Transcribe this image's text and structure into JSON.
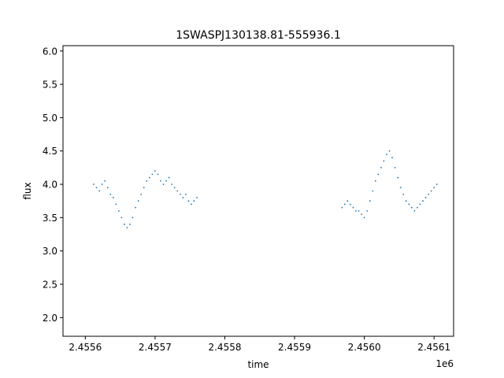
{
  "chart_data": {
    "type": "scatter",
    "title": "1SWASPJ130138.81-555936.1",
    "xlabel": "time",
    "ylabel": "flux",
    "x_offset_label": "1e6",
    "x_scale": 1000000,
    "xlim": [
      2455568,
      2456128
    ],
    "ylim": [
      1.72,
      6.08
    ],
    "x_ticks": [
      2455600,
      2455700,
      2455800,
      2455900,
      2456000,
      2456100
    ],
    "x_tick_labels": [
      "2.4556",
      "2.4557",
      "2.4558",
      "2.4559",
      "2.4560",
      "2.4561"
    ],
    "y_ticks": [
      2.0,
      2.5,
      3.0,
      3.5,
      4.0,
      4.5,
      5.0,
      5.5,
      6.0
    ],
    "y_tick_labels": [
      "2.0",
      "2.5",
      "3.0",
      "3.5",
      "4.0",
      "4.5",
      "5.0",
      "5.5",
      "6.0"
    ],
    "grid": false,
    "marker_color": "#1f77b4",
    "series": [
      {
        "x": [
          2455612,
          2455616,
          2455620,
          2455624,
          2455628,
          2455632,
          2455636,
          2455640,
          2455644,
          2455648,
          2455652,
          2455656,
          2455660,
          2455664,
          2455668,
          2455672,
          2455676,
          2455680,
          2455684,
          2455688,
          2455692,
          2455696,
          2455700,
          2455704,
          2455708,
          2455712,
          2455716,
          2455720,
          2455724,
          2455728,
          2455732,
          2455736,
          2455740,
          2455744,
          2455748,
          2455752,
          2455756,
          2455760,
          2455968,
          2455972,
          2455976,
          2455980,
          2455984,
          2455988,
          2455992,
          2455996,
          2456000,
          2456004,
          2456008,
          2456012,
          2456016,
          2456020,
          2456024,
          2456028,
          2456032,
          2456036,
          2456040,
          2456044,
          2456048,
          2456052,
          2456056,
          2456060,
          2456064,
          2456068,
          2456072,
          2456076,
          2456080,
          2456084,
          2456088,
          2456092,
          2456096,
          2456100,
          2456104
        ],
        "y": [
          4.0,
          3.95,
          3.9,
          4.0,
          4.05,
          3.95,
          3.85,
          3.8,
          3.7,
          3.6,
          3.5,
          3.4,
          3.35,
          3.4,
          3.5,
          3.65,
          3.75,
          3.85,
          3.95,
          4.05,
          4.1,
          4.15,
          4.2,
          4.15,
          4.05,
          4.0,
          4.05,
          4.1,
          4.0,
          3.95,
          3.9,
          3.85,
          3.8,
          3.85,
          3.75,
          3.7,
          3.75,
          3.8,
          3.65,
          3.7,
          3.75,
          3.7,
          3.65,
          3.6,
          3.6,
          3.55,
          3.5,
          3.6,
          3.75,
          3.9,
          4.05,
          4.15,
          4.25,
          4.35,
          4.45,
          4.5,
          4.4,
          4.25,
          4.1,
          3.95,
          3.85,
          3.75,
          3.7,
          3.65,
          3.6,
          3.65,
          3.7,
          3.75,
          3.8,
          3.85,
          3.9,
          3.95,
          4.0
        ]
      }
    ]
  }
}
